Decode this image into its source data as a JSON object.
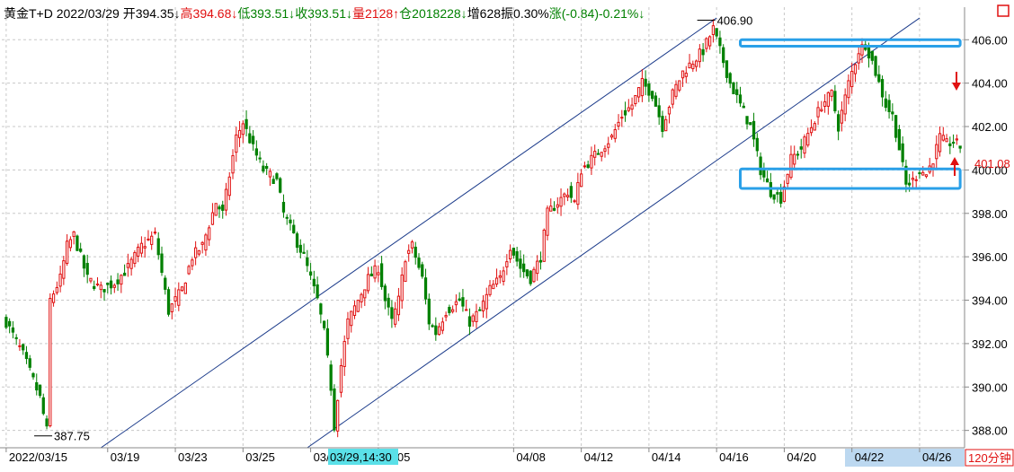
{
  "header": {
    "segments": [
      {
        "text": "黄金T+D",
        "color": "#000000"
      },
      {
        "text": " 2022/03/29 ",
        "color": "#000000"
      },
      {
        "text": "开394.35↓",
        "color": "#000000"
      },
      {
        "text": "高394.68↓",
        "color": "#e01010"
      },
      {
        "text": "低393.51↓",
        "color": "#008000"
      },
      {
        "text": "收393.51↓",
        "color": "#008000"
      },
      {
        "text": "量2128↑",
        "color": "#e01010"
      },
      {
        "text": "仓2018228↓",
        "color": "#008000"
      },
      {
        "text": "增628",
        "color": "#000000"
      },
      {
        "text": "振0.30%",
        "color": "#000000"
      },
      {
        "text": "涨(-0.84)-0.21%↓",
        "color": "#008000"
      }
    ]
  },
  "period_label": "120分钟",
  "crosshair_date_label": "03/29,14:30",
  "current_price_label": "401.08",
  "colors": {
    "up": "#e01010",
    "down": "#008000",
    "channel": "#1a3a8a",
    "box": "#2aa0e8",
    "arrow": "#e01010",
    "grid": "#c8c8c8",
    "highlight": "#5ae0e8",
    "axis_highlight": "#bcd8f0"
  },
  "chart_data": {
    "type": "candlestick",
    "ylim": [
      387.2,
      407.5
    ],
    "y_ticks": [
      388.0,
      390.0,
      392.0,
      394.0,
      396.0,
      398.0,
      400.0,
      402.0,
      404.0,
      406.0
    ],
    "y_tick_labels": [
      "388.00",
      "390.00",
      "392.00",
      "394.00",
      "396.00",
      "398.00",
      "400.00",
      "402.00",
      "404.00",
      "406.00"
    ],
    "x_labels": [
      {
        "i": 0,
        "label": "2022/03/15"
      },
      {
        "i": 30,
        "label": "03/19"
      },
      {
        "i": 50,
        "label": "03/23"
      },
      {
        "i": 70,
        "label": "03/25"
      },
      {
        "i": 90,
        "label": "03/"
      },
      {
        "i": 110,
        "label": "04/05"
      },
      {
        "i": 150,
        "label": "04/08"
      },
      {
        "i": 170,
        "label": "04/12"
      },
      {
        "i": 190,
        "label": "04/14"
      },
      {
        "i": 210,
        "label": "04/16"
      },
      {
        "i": 230,
        "label": "04/20"
      },
      {
        "i": 250,
        "label": "04/22"
      },
      {
        "i": 270,
        "label": "04/26"
      }
    ],
    "annotations": [
      {
        "label": "406.90",
        "i": 208,
        "price": 406.9
      },
      {
        "label": "387.75",
        "i": 12,
        "price": 387.75
      }
    ],
    "channel_lines": [
      {
        "i1": 28,
        "p1": 387.2,
        "i2": 210,
        "p2": 407.0
      },
      {
        "i1": 89,
        "p1": 387.2,
        "i2": 270,
        "p2": 407.0
      }
    ],
    "boxes": [
      {
        "i1": 217,
        "i2": 282,
        "low": 405.7,
        "high": 406.0
      },
      {
        "i1": 217,
        "i2": 282,
        "low": 399.15,
        "high": 400.05
      }
    ],
    "n_bars": 283,
    "anchors": [
      [
        0,
        393.0
      ],
      [
        5,
        391.5
      ],
      [
        10,
        389.5
      ],
      [
        12,
        388.0
      ],
      [
        13,
        394.0
      ],
      [
        16,
        395.0
      ],
      [
        18,
        396.5
      ],
      [
        20,
        397.0
      ],
      [
        24,
        395.0
      ],
      [
        28,
        394.5
      ],
      [
        32,
        394.8
      ],
      [
        36,
        395.5
      ],
      [
        40,
        396.5
      ],
      [
        44,
        397.0
      ],
      [
        48,
        393.5
      ],
      [
        52,
        394.5
      ],
      [
        55,
        396.0
      ],
      [
        58,
        396.5
      ],
      [
        62,
        398.5
      ],
      [
        64,
        398.0
      ],
      [
        68,
        401.5
      ],
      [
        70,
        402.2
      ],
      [
        73,
        401.0
      ],
      [
        76,
        400.0
      ],
      [
        80,
        399.5
      ],
      [
        82,
        398.0
      ],
      [
        85,
        397.0
      ],
      [
        88,
        396.0
      ],
      [
        90,
        395.0
      ],
      [
        92,
        394.0
      ],
      [
        94,
        392.5
      ],
      [
        96,
        390.0
      ],
      [
        97,
        388.2
      ],
      [
        99,
        391.0
      ],
      [
        101,
        393.0
      ],
      [
        104,
        394.0
      ],
      [
        107,
        395.0
      ],
      [
        110,
        395.5
      ],
      [
        112,
        394.0
      ],
      [
        114,
        393.0
      ],
      [
        116,
        394.0
      ],
      [
        118,
        396.0
      ],
      [
        120,
        396.5
      ],
      [
        123,
        395.0
      ],
      [
        125,
        393.0
      ],
      [
        127,
        392.5
      ],
      [
        130,
        393.5
      ],
      [
        134,
        394.0
      ],
      [
        137,
        393.0
      ],
      [
        140,
        393.5
      ],
      [
        143,
        394.5
      ],
      [
        146,
        395.0
      ],
      [
        149,
        396.5
      ],
      [
        152,
        395.5
      ],
      [
        155,
        395.0
      ],
      [
        158,
        396.0
      ],
      [
        160,
        398.0
      ],
      [
        163,
        398.5
      ],
      [
        166,
        399.0
      ],
      [
        168,
        398.5
      ],
      [
        170,
        400.0
      ],
      [
        173,
        400.5
      ],
      [
        176,
        401.0
      ],
      [
        179,
        401.5
      ],
      [
        182,
        402.5
      ],
      [
        185,
        403.0
      ],
      [
        188,
        404.0
      ],
      [
        191,
        403.5
      ],
      [
        194,
        402.0
      ],
      [
        197,
        403.5
      ],
      [
        200,
        404.5
      ],
      [
        203,
        405.0
      ],
      [
        206,
        405.5
      ],
      [
        209,
        406.5
      ],
      [
        212,
        405.0
      ],
      [
        214,
        404.0
      ],
      [
        217,
        403.0
      ],
      [
        220,
        402.0
      ],
      [
        223,
        400.0
      ],
      [
        226,
        399.0
      ],
      [
        229,
        398.7
      ],
      [
        232,
        400.5
      ],
      [
        235,
        401.0
      ],
      [
        238,
        402.0
      ],
      [
        241,
        403.0
      ],
      [
        244,
        403.5
      ],
      [
        246,
        402.0
      ],
      [
        249,
        404.0
      ],
      [
        252,
        405.5
      ],
      [
        254,
        405.8
      ],
      [
        256,
        405.0
      ],
      [
        258,
        404.0
      ],
      [
        260,
        403.0
      ],
      [
        262,
        402.5
      ],
      [
        264,
        401.0
      ],
      [
        266,
        399.3
      ],
      [
        268,
        399.5
      ],
      [
        270,
        400.0
      ],
      [
        272,
        399.8
      ],
      [
        274,
        400.5
      ],
      [
        276,
        401.5
      ],
      [
        278,
        401.2
      ],
      [
        280,
        401.3
      ],
      [
        282,
        401.08
      ]
    ]
  }
}
